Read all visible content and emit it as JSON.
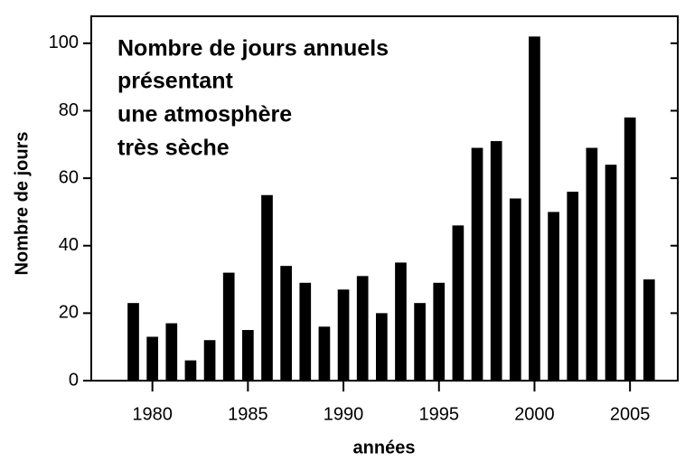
{
  "chart_data": {
    "type": "bar",
    "title": [
      "Nombre de jours annuels",
      "présentant",
      "une atmosphère",
      "très sèche"
    ],
    "x_label": "années",
    "y_label": "Nombre de jours",
    "x": [
      1979,
      1980,
      1981,
      1982,
      1983,
      1984,
      1985,
      1986,
      1987,
      1988,
      1989,
      1990,
      1991,
      1992,
      1993,
      1994,
      1995,
      1996,
      1997,
      1998,
      1999,
      2000,
      2001,
      2002,
      2003,
      2004,
      2005,
      2006
    ],
    "values": [
      23,
      13,
      17,
      6,
      12,
      32,
      15,
      55,
      34,
      29,
      16,
      27,
      31,
      20,
      35,
      23,
      29,
      46,
      69,
      71,
      54,
      102,
      50,
      56,
      69,
      64,
      78,
      30
    ],
    "color": "#000000",
    "xlim": [
      1976.8,
      2007.5
    ],
    "xticks": [
      1980,
      1985,
      1990,
      1995,
      2000,
      2005
    ],
    "ylim": [
      0,
      108
    ],
    "yticks": [
      0,
      20,
      40,
      60,
      80,
      100
    ]
  }
}
